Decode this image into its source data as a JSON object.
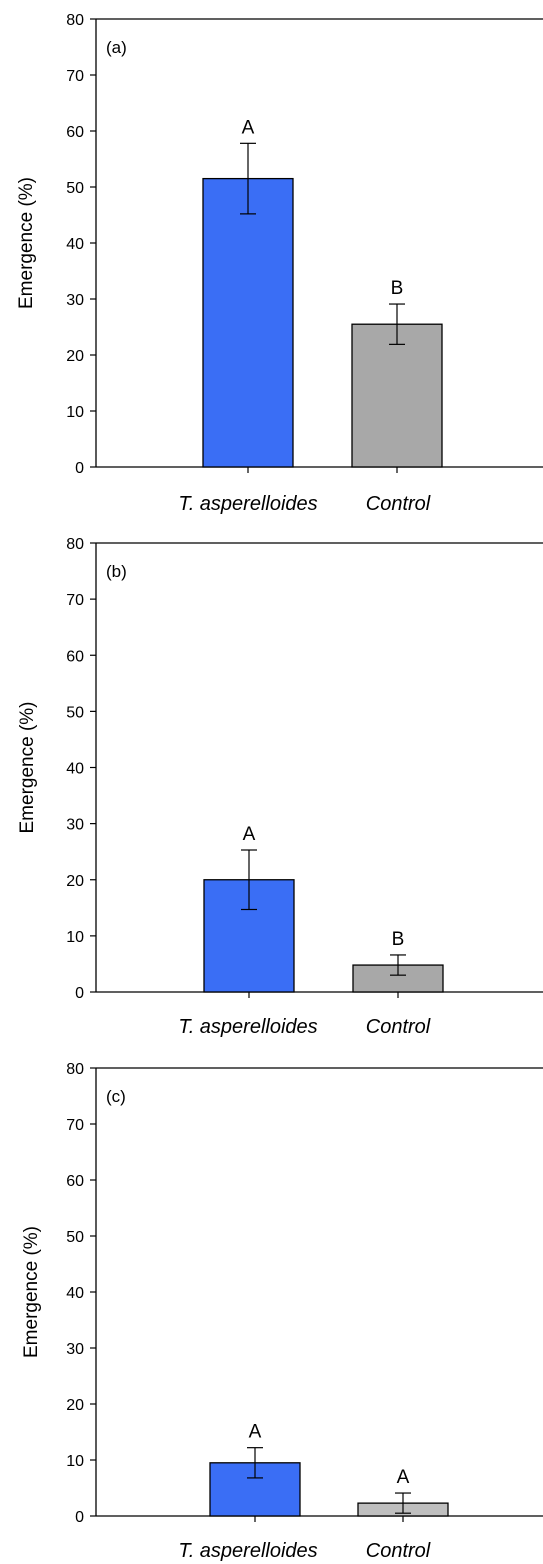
{
  "chart_data": [
    {
      "type": "bar",
      "panel_label": "(a)",
      "ylabel": "Emergence (%)",
      "ylim": [
        0,
        80
      ],
      "yticks": [
        0,
        10,
        20,
        30,
        40,
        50,
        60,
        70,
        80
      ],
      "categories": [
        "T. asperelloides",
        "Control"
      ],
      "values": [
        51.5,
        25.5
      ],
      "error": [
        6.3,
        3.6
      ],
      "significance": [
        "A",
        "B"
      ],
      "colors": [
        "#3a6ef5",
        "#a8a8a8"
      ],
      "grid": false
    },
    {
      "type": "bar",
      "panel_label": "(b)",
      "ylabel": "Emergence  (%)",
      "ylim": [
        0,
        80
      ],
      "yticks": [
        0,
        10,
        20,
        30,
        40,
        50,
        60,
        70,
        80
      ],
      "categories": [
        "T. asperelloides",
        "Control"
      ],
      "values": [
        20.0,
        4.8
      ],
      "error": [
        5.3,
        1.8
      ],
      "significance": [
        "A",
        "B"
      ],
      "colors": [
        "#3a6ef5",
        "#a8a8a8"
      ],
      "grid": false
    },
    {
      "type": "bar",
      "panel_label": "(c)",
      "ylabel": "Emergence (%)",
      "ylim": [
        0,
        80
      ],
      "yticks": [
        0,
        10,
        20,
        30,
        40,
        50,
        60,
        70,
        80
      ],
      "categories": [
        "T. asperelloides",
        "Control"
      ],
      "values": [
        9.5,
        2.3
      ],
      "error": [
        2.7,
        1.8
      ],
      "significance": [
        "A",
        "A"
      ],
      "colors": [
        "#3a6ef5",
        "#bfbfbf"
      ],
      "grid": false
    }
  ]
}
